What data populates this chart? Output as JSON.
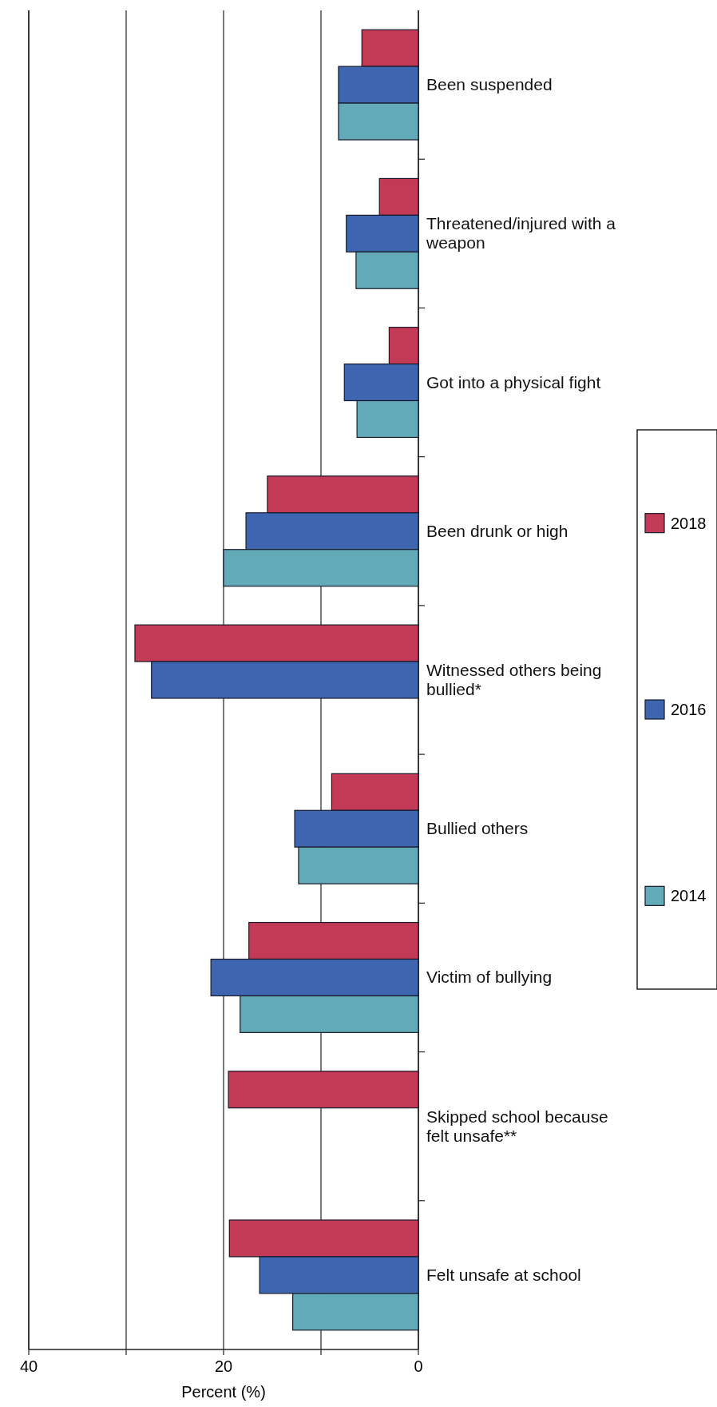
{
  "chart_data": {
    "type": "bar",
    "orientation": "horizontal",
    "xlabel": "Percent (%)",
    "categories": [
      "Been suspended",
      "Threatened/injured with a weapon",
      "Got into a physical fight",
      "Been drunk or high",
      "Witnessed others being bullied*",
      "Bullied others",
      "Victim of bullying",
      "Skipped school because felt unsafe**",
      "Felt unsafe at school"
    ],
    "series": [
      {
        "name": "2018",
        "color": "#c23a55",
        "values": [
          5.8,
          4.0,
          3.0,
          15.5,
          29.1,
          8.9,
          17.4,
          19.5,
          19.4
        ]
      },
      {
        "name": "2016",
        "color": "#3d65b0",
        "values": [
          8.2,
          7.4,
          7.6,
          17.7,
          27.4,
          12.7,
          21.3,
          null,
          16.3
        ]
      },
      {
        "name": "2014",
        "color": "#62aab8",
        "values": [
          8.2,
          6.4,
          6.3,
          20.0,
          null,
          12.3,
          18.3,
          null,
          12.9
        ]
      }
    ],
    "xlim": [
      40,
      0
    ],
    "xticks": [
      40,
      {
        "value": 30,
        "label": null
      },
      20,
      {
        "value": 10,
        "label": null
      },
      0
    ],
    "grid": "x",
    "legend": "right"
  }
}
